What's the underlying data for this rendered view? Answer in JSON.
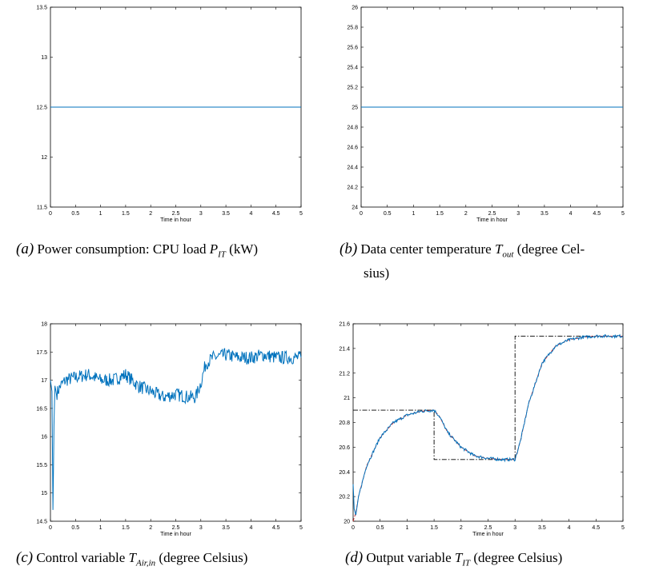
{
  "charts": [
    {
      "id": "a",
      "type": "line",
      "xlabel": "Time in hour",
      "xlim": [
        0,
        5
      ],
      "ylim": [
        11.5,
        13.5
      ],
      "xticks": [
        "0",
        "0.5",
        "1",
        "1.5",
        "2",
        "2.5",
        "3",
        "3.5",
        "4",
        "4.5",
        "5"
      ],
      "yticks": [
        "11.5",
        "12",
        "12.5",
        "13",
        "13.5"
      ],
      "series": [
        {
          "color": "#0072BD",
          "style": "solid",
          "x": [
            0,
            5
          ],
          "y": [
            12.5,
            12.5
          ]
        }
      ]
    },
    {
      "id": "b",
      "type": "line",
      "xlabel": "Time in hour",
      "xlim": [
        0,
        5
      ],
      "ylim": [
        24,
        26
      ],
      "xticks": [
        "0",
        "0.5",
        "1",
        "1.5",
        "2",
        "2.5",
        "3",
        "3.5",
        "4",
        "4.5",
        "5"
      ],
      "yticks": [
        "24",
        "24.2",
        "24.4",
        "24.6",
        "24.8",
        "25",
        "25.2",
        "25.4",
        "25.6",
        "25.8",
        "26"
      ],
      "series": [
        {
          "color": "#0072BD",
          "style": "solid",
          "x": [
            0,
            5
          ],
          "y": [
            25,
            25
          ]
        }
      ]
    },
    {
      "id": "c",
      "type": "line",
      "xlabel": "Time in hour",
      "xlim": [
        0,
        5
      ],
      "ylim": [
        14.5,
        18
      ],
      "xticks": [
        "0",
        "0.5",
        "1",
        "1.5",
        "2",
        "2.5",
        "3",
        "3.5",
        "4",
        "4.5",
        "5"
      ],
      "yticks": [
        "14.5",
        "15",
        "15.5",
        "16",
        "16.5",
        "17",
        "17.5",
        "18"
      ],
      "series": [
        {
          "color": "#0072BD",
          "style": "solid",
          "x": [
            0,
            0.03,
            0.05,
            0.07,
            0.09,
            0.12,
            0.2,
            0.3,
            0.5,
            0.75,
            1,
            1.25,
            1.5,
            1.75,
            2,
            2.25,
            2.5,
            2.75,
            2.9,
            3,
            3.1,
            3.25,
            3.5,
            3.75,
            4,
            4.25,
            4.5,
            4.75,
            5
          ],
          "y": [
            17,
            16.8,
            14.7,
            16.2,
            16.9,
            16.75,
            16.9,
            17.0,
            17.05,
            17.1,
            17.0,
            17.0,
            17.1,
            16.9,
            16.8,
            16.7,
            16.75,
            16.7,
            16.7,
            16.95,
            17.3,
            17.4,
            17.45,
            17.4,
            17.4,
            17.45,
            17.4,
            17.4,
            17.4
          ],
          "noise": 0.12
        }
      ]
    },
    {
      "id": "d",
      "type": "line",
      "xlabel": "Time in hour",
      "xlim": [
        0,
        5
      ],
      "ylim": [
        20,
        21.6
      ],
      "xticks": [
        "0",
        "0.5",
        "1",
        "1.5",
        "2",
        "2.5",
        "3",
        "3.5",
        "4",
        "4.5",
        "5"
      ],
      "yticks": [
        "20",
        "20.2",
        "20.4",
        "20.6",
        "20.8",
        "21",
        "21.2",
        "21.4",
        "21.6"
      ],
      "series": [
        {
          "color": "#000000",
          "style": "dashdot",
          "x": [
            0,
            1.5,
            1.5,
            3,
            3,
            5
          ],
          "y": [
            20.9,
            20.9,
            20.5,
            20.5,
            21.5,
            21.5
          ]
        },
        {
          "color": "#D62728",
          "style": "dashed",
          "x": [
            0,
            0.05,
            0.1,
            0.25,
            0.5,
            0.75,
            1,
            1.25,
            1.5,
            1.6,
            1.75,
            2,
            2.25,
            2.5,
            2.75,
            3,
            3.1,
            3.25,
            3.5,
            3.75,
            4,
            4.25,
            4.5,
            4.75,
            5
          ],
          "y": [
            20,
            20.07,
            20.2,
            20.45,
            20.68,
            20.8,
            20.86,
            20.89,
            20.9,
            20.85,
            20.72,
            20.6,
            20.53,
            20.51,
            20.5,
            20.5,
            20.65,
            20.95,
            21.28,
            21.42,
            21.47,
            21.49,
            21.5,
            21.5,
            21.5
          ]
        },
        {
          "color": "#0072BD",
          "style": "solid",
          "x": [
            0,
            0.02,
            0.05,
            0.1,
            0.25,
            0.5,
            0.75,
            1,
            1.25,
            1.5,
            1.6,
            1.75,
            2,
            2.25,
            2.5,
            2.75,
            3,
            3.1,
            3.25,
            3.5,
            3.75,
            4,
            4.25,
            4.5,
            4.75,
            5
          ],
          "y": [
            20.3,
            20.1,
            20.05,
            20.2,
            20.45,
            20.68,
            20.8,
            20.86,
            20.89,
            20.9,
            20.85,
            20.72,
            20.6,
            20.53,
            20.51,
            20.5,
            20.5,
            20.65,
            20.95,
            21.28,
            21.42,
            21.47,
            21.49,
            21.5,
            21.5,
            21.5
          ],
          "noise": 0.012
        }
      ]
    }
  ],
  "captions": {
    "a": {
      "tag": "(a)",
      "text": "Power consumption: CPU load",
      "sym": "P",
      "sub": "IT",
      "unit": "(kW)"
    },
    "b": {
      "tag": "(b)",
      "text": "Data center temperature",
      "sym": "T",
      "sub": "out",
      "rest1": "(degree Cel-",
      "rest2": "sius)"
    },
    "c": {
      "tag": "(c)",
      "text": "Control variable",
      "sym": "T",
      "sub": "Air,in",
      "unit": "(degree Celsius)"
    },
    "d": {
      "tag": "(d)",
      "text": "Output variable",
      "sym": "T",
      "sub": "IT",
      "unit": "(degree Celsius)"
    }
  }
}
